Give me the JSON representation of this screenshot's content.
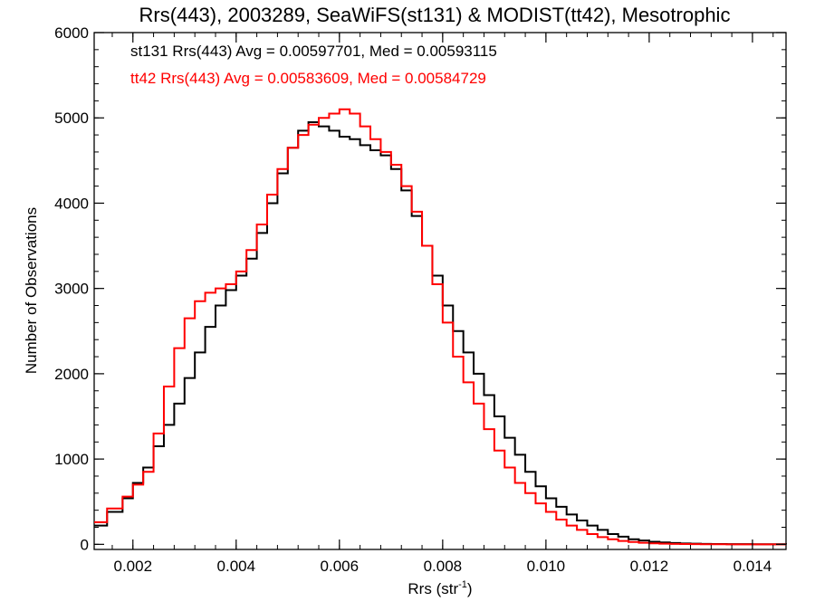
{
  "chart_data": {
    "type": "line",
    "title": "Rrs(443), 2003289, SeaWiFS(st131) & MODIST(tt42), Mesotrophic",
    "xlabel": "Rrs (str",
    "xlabel_sup": "-1",
    "xlabel_close": ")",
    "ylabel": "Number of Observations",
    "xlim": [
      0.00125,
      0.01465
    ],
    "ylim": [
      -60,
      6000
    ],
    "xticks": [
      0.002,
      0.004,
      0.006,
      0.008,
      0.01,
      0.012,
      0.014
    ],
    "xtick_labels": [
      "0.002",
      "0.004",
      "0.006",
      "0.008",
      "0.010",
      "0.012",
      "0.014"
    ],
    "yticks": [
      0,
      1000,
      2000,
      3000,
      4000,
      5000,
      6000
    ],
    "ytick_labels": [
      "0",
      "1000",
      "2000",
      "3000",
      "4000",
      "5000",
      "6000"
    ],
    "grid": false,
    "annotations": [
      {
        "text": "st131 Rrs(443) Avg = 0.00597701, Med = 0.00593115",
        "color": "#000000"
      },
      {
        "text": "tt42 Rrs(443) Avg = 0.00583609, Med = 0.00584729",
        "color": "#ff0000"
      }
    ],
    "series": [
      {
        "color": "#000000",
        "step": true,
        "x": [
          0.00125,
          0.0015,
          0.0018,
          0.002,
          0.0022,
          0.0024,
          0.0026,
          0.0028,
          0.003,
          0.0032,
          0.0034,
          0.0036,
          0.0038,
          0.004,
          0.0042,
          0.0044,
          0.0046,
          0.0048,
          0.005,
          0.0052,
          0.0054,
          0.0056,
          0.0058,
          0.006,
          0.0062,
          0.0064,
          0.0066,
          0.0068,
          0.007,
          0.0072,
          0.0074,
          0.0076,
          0.0078,
          0.008,
          0.0082,
          0.0084,
          0.0086,
          0.0088,
          0.009,
          0.0092,
          0.0094,
          0.0096,
          0.0098,
          0.01,
          0.0102,
          0.0104,
          0.0106,
          0.0108,
          0.011,
          0.0112,
          0.0114,
          0.0116,
          0.0118,
          0.012,
          0.0122,
          0.0124,
          0.0126,
          0.0128,
          0.013,
          0.0132,
          0.0135,
          0.014,
          0.01465
        ],
        "y": [
          220,
          380,
          540,
          720,
          900,
          1150,
          1400,
          1650,
          1950,
          2250,
          2550,
          2800,
          2980,
          3150,
          3350,
          3650,
          4000,
          4350,
          4650,
          4850,
          4950,
          4900,
          4850,
          4780,
          4750,
          4680,
          4620,
          4560,
          4400,
          4150,
          3850,
          3500,
          3150,
          2800,
          2500,
          2250,
          2000,
          1750,
          1500,
          1250,
          1050,
          850,
          680,
          540,
          440,
          350,
          280,
          220,
          170,
          120,
          90,
          60,
          45,
          30,
          22,
          15,
          10,
          8,
          5,
          3,
          2,
          1,
          0
        ]
      },
      {
        "color": "#ff0000",
        "step": true,
        "x": [
          0.00125,
          0.0015,
          0.0018,
          0.002,
          0.0022,
          0.0024,
          0.0026,
          0.0028,
          0.003,
          0.0032,
          0.0034,
          0.0036,
          0.0038,
          0.004,
          0.0042,
          0.0044,
          0.0046,
          0.0048,
          0.005,
          0.0052,
          0.0054,
          0.0056,
          0.0058,
          0.006,
          0.0062,
          0.0064,
          0.0066,
          0.0068,
          0.007,
          0.0072,
          0.0074,
          0.0076,
          0.0078,
          0.008,
          0.0082,
          0.0084,
          0.0086,
          0.0088,
          0.009,
          0.0092,
          0.0094,
          0.0096,
          0.0098,
          0.01,
          0.0102,
          0.0104,
          0.0106,
          0.0108,
          0.011,
          0.0112,
          0.0114,
          0.0116,
          0.0118,
          0.012,
          0.0122,
          0.0124,
          0.0126,
          0.0128,
          0.013,
          0.0132,
          0.0135,
          0.014,
          0.01465
        ],
        "y": [
          260,
          420,
          560,
          700,
          850,
          1300,
          1850,
          2300,
          2650,
          2850,
          2950,
          3000,
          3050,
          3200,
          3450,
          3750,
          4100,
          4400,
          4650,
          4800,
          4920,
          5000,
          5050,
          5100,
          5050,
          4900,
          4750,
          4600,
          4450,
          4200,
          3900,
          3500,
          3050,
          2600,
          2200,
          1900,
          1650,
          1350,
          1100,
          900,
          720,
          600,
          480,
          380,
          290,
          220,
          170,
          120,
          85,
          60,
          40,
          28,
          18,
          12,
          8,
          5,
          3,
          2,
          1,
          1,
          0,
          0,
          0
        ]
      }
    ]
  }
}
